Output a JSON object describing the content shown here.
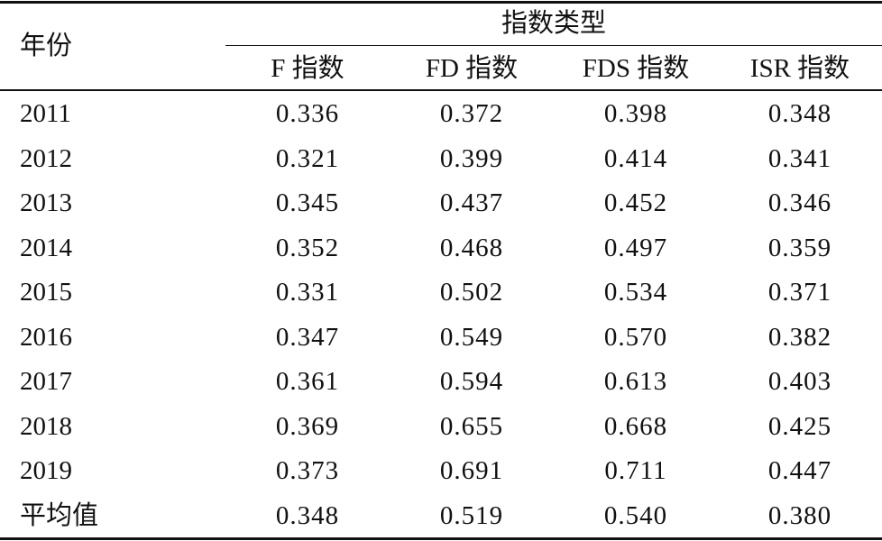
{
  "table": {
    "header": {
      "year": "年份",
      "group": "指数类型",
      "columns": [
        "F 指数",
        "FD 指数",
        "FDS 指数",
        "ISR 指数"
      ]
    },
    "rows": [
      [
        "2011",
        "0.336",
        "0.372",
        "0.398",
        "0.348"
      ],
      [
        "2012",
        "0.321",
        "0.399",
        "0.414",
        "0.341"
      ],
      [
        "2013",
        "0.345",
        "0.437",
        "0.452",
        "0.346"
      ],
      [
        "2014",
        "0.352",
        "0.468",
        "0.497",
        "0.359"
      ],
      [
        "2015",
        "0.331",
        "0.502",
        "0.534",
        "0.371"
      ],
      [
        "2016",
        "0.347",
        "0.549",
        "0.570",
        "0.382"
      ],
      [
        "2017",
        "0.361",
        "0.594",
        "0.613",
        "0.403"
      ],
      [
        "2018",
        "0.369",
        "0.655",
        "0.668",
        "0.425"
      ],
      [
        "2019",
        "0.373",
        "0.691",
        "0.711",
        "0.447"
      ],
      [
        "平均值",
        "0.348",
        "0.519",
        "0.540",
        "0.380"
      ]
    ]
  }
}
